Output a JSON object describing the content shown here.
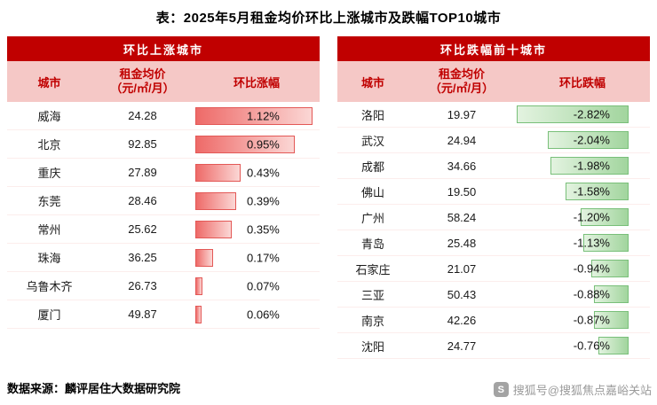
{
  "title": "表：2025年5月租金均价环比上涨城市及跌幅TOP10城市",
  "chart_data": [
    {
      "type": "table",
      "title": "环比上涨城市",
      "columns": [
        "城市",
        "租金均价（元/㎡/月）",
        "环比涨幅"
      ],
      "price_header_lines": [
        "租金均价",
        "（元/㎡/月）"
      ],
      "bar_anchor": "left",
      "rows": [
        {
          "city": "威海",
          "price": "24.28",
          "change": "1.12%",
          "value": 1.12
        },
        {
          "city": "北京",
          "price": "92.85",
          "change": "0.95%",
          "value": 0.95
        },
        {
          "city": "重庆",
          "price": "27.89",
          "change": "0.43%",
          "value": 0.43
        },
        {
          "city": "东莞",
          "price": "28.46",
          "change": "0.39%",
          "value": 0.39
        },
        {
          "city": "常州",
          "price": "25.62",
          "change": "0.35%",
          "value": 0.35
        },
        {
          "city": "珠海",
          "price": "36.25",
          "change": "0.17%",
          "value": 0.17
        },
        {
          "city": "乌鲁木齐",
          "price": "26.73",
          "change": "0.07%",
          "value": 0.07
        },
        {
          "city": "厦门",
          "price": "49.87",
          "change": "0.06%",
          "value": 0.06
        }
      ]
    },
    {
      "type": "table",
      "title": "环比跌幅前十城市",
      "columns": [
        "城市",
        "租金均价（元/㎡/月）",
        "环比跌幅"
      ],
      "price_header_lines": [
        "租金均价",
        "（元/㎡/月）"
      ],
      "bar_anchor": "right",
      "rows": [
        {
          "city": "洛阳",
          "price": "19.97",
          "change": "-2.82%",
          "value": -2.82
        },
        {
          "city": "武汉",
          "price": "24.94",
          "change": "-2.04%",
          "value": -2.04
        },
        {
          "city": "成都",
          "price": "34.66",
          "change": "-1.98%",
          "value": -1.98
        },
        {
          "city": "佛山",
          "price": "19.50",
          "change": "-1.58%",
          "value": -1.58
        },
        {
          "city": "广州",
          "price": "58.24",
          "change": "-1.20%",
          "value": -1.2
        },
        {
          "city": "青岛",
          "price": "25.48",
          "change": "-1.13%",
          "value": -1.13
        },
        {
          "city": "石家庄",
          "price": "21.07",
          "change": "-0.94%",
          "value": -0.94
        },
        {
          "city": "三亚",
          "price": "50.43",
          "change": "-0.88%",
          "value": -0.88
        },
        {
          "city": "南京",
          "price": "42.26",
          "change": "-0.87%",
          "value": -0.87
        },
        {
          "city": "沈阳",
          "price": "24.77",
          "change": "-0.76%",
          "value": -0.76
        }
      ]
    }
  ],
  "colors": {
    "panel_header_bg": "#c00000",
    "column_header_bg": "#f5c8c6",
    "column_header_text": "#c00000",
    "rise_bar_border": "#e35856",
    "rise_bar_fill": "#ee6a68",
    "fall_bar_border": "#79bf79",
    "fall_bar_fill": "#a2d59e"
  },
  "footer": {
    "source_label": "数据来源：麟评居住大数据研究院"
  },
  "watermark": {
    "logo_letter": "S",
    "label": "搜狐号@搜狐焦点嘉峪关站"
  }
}
